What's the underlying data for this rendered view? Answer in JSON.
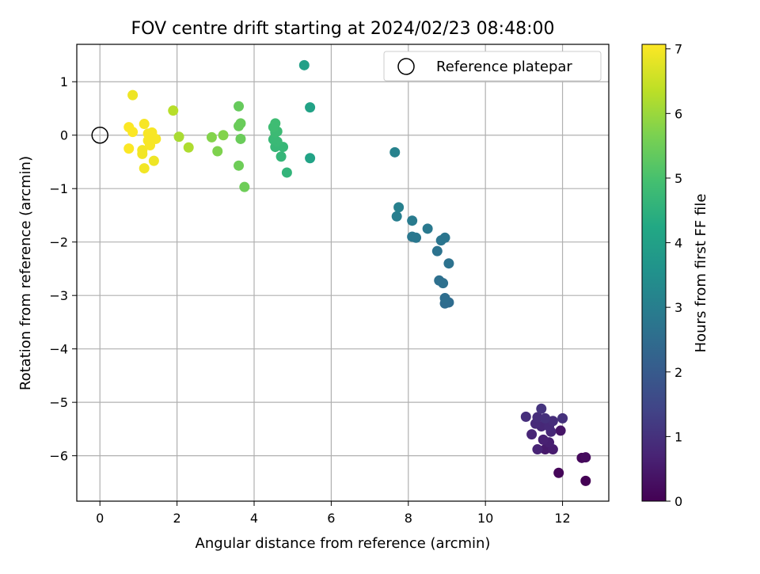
{
  "chart_data": {
    "type": "scatter",
    "title": "FOV centre drift starting at 2024/02/23 08:48:00",
    "xlabel": "Angular distance from reference (arcmin)",
    "ylabel": "Rotation from reference (arcmin)",
    "xlim": [
      -0.6,
      13.2
    ],
    "ylim": [
      -6.85,
      1.7
    ],
    "xticks": [
      0,
      2,
      4,
      6,
      8,
      10,
      12
    ],
    "yticks": [
      1,
      0,
      -1,
      -2,
      -3,
      -4,
      -5,
      -6
    ],
    "grid": true,
    "legend": {
      "position": "top-right",
      "label": "Reference platepar"
    },
    "reference_point": {
      "x": 0,
      "y": 0
    },
    "colorbar": {
      "label": "Hours from first FF file",
      "range": [
        0,
        7.07
      ],
      "ticks": [
        0,
        1,
        2,
        3,
        4,
        5,
        6,
        7
      ],
      "colormap": "viridis"
    },
    "points": [
      {
        "x": 12.6,
        "y": -6.47,
        "c": 0.0
      },
      {
        "x": 11.9,
        "y": -6.32,
        "c": 0.1
      },
      {
        "x": 12.5,
        "y": -6.04,
        "c": 0.15
      },
      {
        "x": 12.6,
        "y": -6.03,
        "c": 0.2
      },
      {
        "x": 11.95,
        "y": -5.53,
        "c": 0.4
      },
      {
        "x": 11.55,
        "y": -5.88,
        "c": 0.5
      },
      {
        "x": 11.75,
        "y": -5.88,
        "c": 0.55
      },
      {
        "x": 11.65,
        "y": -5.75,
        "c": 0.6
      },
      {
        "x": 11.5,
        "y": -5.7,
        "c": 0.65
      },
      {
        "x": 11.35,
        "y": -5.88,
        "c": 0.7
      },
      {
        "x": 11.2,
        "y": -5.6,
        "c": 0.75
      },
      {
        "x": 11.7,
        "y": -5.55,
        "c": 0.8
      },
      {
        "x": 11.45,
        "y": -5.45,
        "c": 0.8
      },
      {
        "x": 11.3,
        "y": -5.4,
        "c": 0.85
      },
      {
        "x": 11.65,
        "y": -5.45,
        "c": 0.85
      },
      {
        "x": 11.75,
        "y": -5.35,
        "c": 0.9
      },
      {
        "x": 11.35,
        "y": -5.28,
        "c": 0.9
      },
      {
        "x": 11.05,
        "y": -5.27,
        "c": 0.95
      },
      {
        "x": 11.55,
        "y": -5.3,
        "c": 1.0
      },
      {
        "x": 12.0,
        "y": -5.3,
        "c": 1.0
      },
      {
        "x": 11.45,
        "y": -5.12,
        "c": 1.05
      },
      {
        "x": 9.05,
        "y": -3.13,
        "c": 2.5
      },
      {
        "x": 8.95,
        "y": -3.15,
        "c": 2.5
      },
      {
        "x": 8.95,
        "y": -3.05,
        "c": 2.55
      },
      {
        "x": 8.9,
        "y": -2.77,
        "c": 2.6
      },
      {
        "x": 8.8,
        "y": -2.72,
        "c": 2.6
      },
      {
        "x": 9.05,
        "y": -2.4,
        "c": 2.65
      },
      {
        "x": 8.75,
        "y": -2.17,
        "c": 2.7
      },
      {
        "x": 8.85,
        "y": -1.97,
        "c": 2.75
      },
      {
        "x": 8.95,
        "y": -1.92,
        "c": 2.75
      },
      {
        "x": 8.1,
        "y": -1.9,
        "c": 2.8
      },
      {
        "x": 8.2,
        "y": -1.92,
        "c": 2.8
      },
      {
        "x": 8.5,
        "y": -1.75,
        "c": 2.85
      },
      {
        "x": 8.1,
        "y": -1.6,
        "c": 2.9
      },
      {
        "x": 7.7,
        "y": -1.52,
        "c": 3.0
      },
      {
        "x": 7.75,
        "y": -1.35,
        "c": 3.05
      },
      {
        "x": 7.65,
        "y": -0.32,
        "c": 3.1
      },
      {
        "x": 5.3,
        "y": 1.31,
        "c": 4.0
      },
      {
        "x": 5.45,
        "y": 0.52,
        "c": 4.05
      },
      {
        "x": 5.45,
        "y": -0.43,
        "c": 4.1
      },
      {
        "x": 4.85,
        "y": -0.7,
        "c": 4.6
      },
      {
        "x": 4.7,
        "y": -0.4,
        "c": 4.65
      },
      {
        "x": 4.75,
        "y": -0.22,
        "c": 4.7
      },
      {
        "x": 4.55,
        "y": -0.22,
        "c": 4.7
      },
      {
        "x": 4.6,
        "y": -0.12,
        "c": 4.75
      },
      {
        "x": 4.5,
        "y": -0.08,
        "c": 4.75
      },
      {
        "x": 4.55,
        "y": 0.05,
        "c": 4.8
      },
      {
        "x": 4.6,
        "y": 0.07,
        "c": 4.8
      },
      {
        "x": 4.5,
        "y": 0.15,
        "c": 4.85
      },
      {
        "x": 4.55,
        "y": 0.22,
        "c": 4.85
      },
      {
        "x": 3.75,
        "y": -0.97,
        "c": 5.5
      },
      {
        "x": 3.6,
        "y": -0.57,
        "c": 5.5
      },
      {
        "x": 3.65,
        "y": -0.07,
        "c": 5.45
      },
      {
        "x": 3.6,
        "y": 0.17,
        "c": 5.45
      },
      {
        "x": 3.65,
        "y": 0.22,
        "c": 5.45
      },
      {
        "x": 3.6,
        "y": 0.54,
        "c": 5.4
      },
      {
        "x": 3.05,
        "y": -0.3,
        "c": 5.7
      },
      {
        "x": 2.9,
        "y": -0.04,
        "c": 5.75
      },
      {
        "x": 3.2,
        "y": 0.0,
        "c": 5.75
      },
      {
        "x": 2.3,
        "y": -0.23,
        "c": 6.2
      },
      {
        "x": 2.05,
        "y": -0.03,
        "c": 6.15
      },
      {
        "x": 1.9,
        "y": 0.46,
        "c": 6.3
      },
      {
        "x": 1.15,
        "y": -0.62,
        "c": 6.95
      },
      {
        "x": 1.4,
        "y": -0.48,
        "c": 6.9
      },
      {
        "x": 1.1,
        "y": -0.35,
        "c": 6.95
      },
      {
        "x": 1.1,
        "y": -0.28,
        "c": 6.95
      },
      {
        "x": 1.3,
        "y": -0.19,
        "c": 7.0
      },
      {
        "x": 1.25,
        "y": -0.1,
        "c": 7.0
      },
      {
        "x": 1.45,
        "y": -0.07,
        "c": 7.0
      },
      {
        "x": 1.25,
        "y": 0.03,
        "c": 7.0
      },
      {
        "x": 1.35,
        "y": 0.05,
        "c": 7.0
      },
      {
        "x": 0.75,
        "y": -0.25,
        "c": 7.05
      },
      {
        "x": 0.85,
        "y": 0.06,
        "c": 7.05
      },
      {
        "x": 0.75,
        "y": 0.15,
        "c": 7.05
      },
      {
        "x": 1.15,
        "y": 0.21,
        "c": 7.0
      },
      {
        "x": 0.85,
        "y": 0.75,
        "c": 6.9
      }
    ]
  }
}
